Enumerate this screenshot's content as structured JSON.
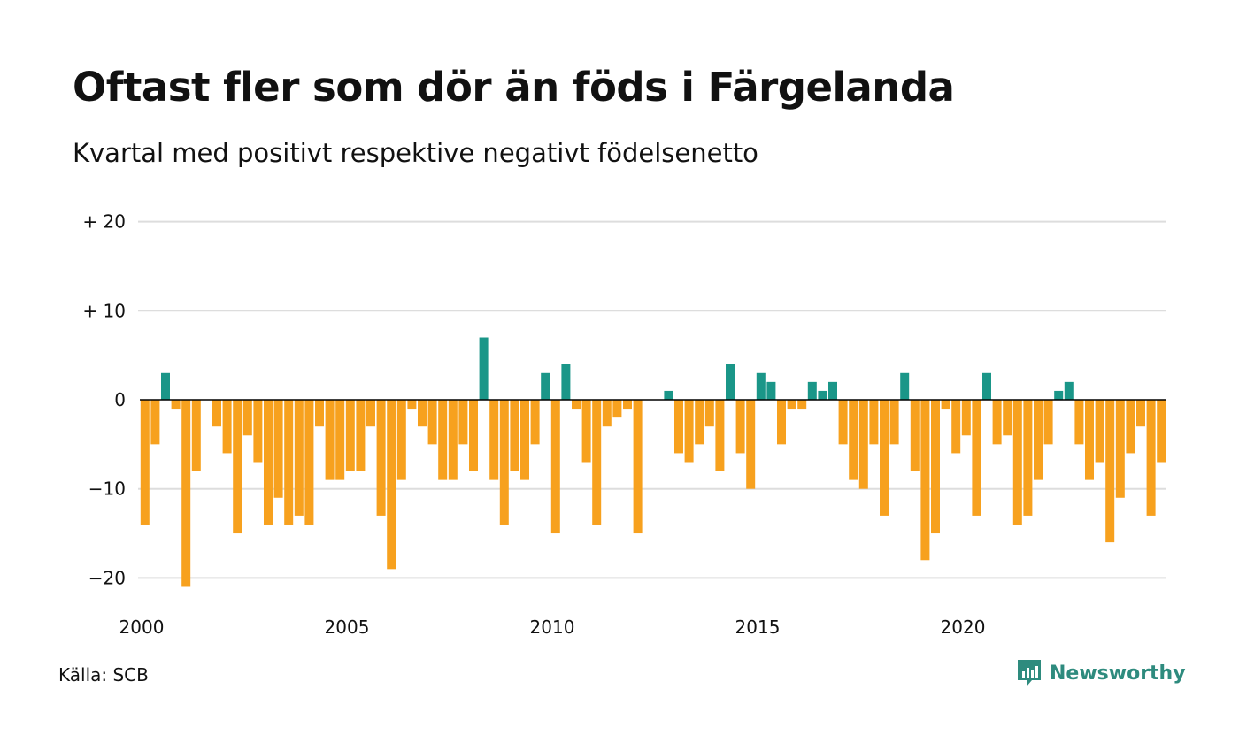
{
  "title": "Oftast fler som dör än föds i Färgelanda",
  "subtitle": "Kvartal med positivt respektive negativt födelsenetto",
  "source": "Källa: SCB",
  "brand": {
    "name": "Newsworthy",
    "icon": "newsworthy-logo-icon"
  },
  "colors": {
    "positive": "#1a9688",
    "negative": "#f7a11e",
    "grid": "#dddddd",
    "zero": "#000000"
  },
  "chart_data": {
    "type": "bar",
    "start_year": 2000,
    "quarters_per_year": 4,
    "xticks": [
      2000,
      2005,
      2010,
      2015,
      2020
    ],
    "ytick_values": [
      20,
      10,
      0,
      -10,
      -20
    ],
    "ytick_labels": [
      "+ 20",
      "+ 10",
      "0",
      "−10",
      "−20"
    ],
    "ylim": [
      -23,
      22
    ],
    "grid": true,
    "values": [
      -14,
      -5,
      3,
      -1,
      -21,
      -8,
      0,
      -3,
      -6,
      -15,
      -4,
      -7,
      -14,
      -11,
      -14,
      -13,
      -14,
      -3,
      -9,
      -9,
      -8,
      -8,
      -3,
      -13,
      -19,
      -9,
      -1,
      -3,
      -5,
      -9,
      -9,
      -5,
      -8,
      7,
      -9,
      -14,
      -8,
      -9,
      -5,
      3,
      -15,
      4,
      -1,
      -7,
      -14,
      -3,
      -2,
      -1,
      -15,
      0,
      0,
      1,
      -6,
      -7,
      -5,
      -3,
      -8,
      4,
      -6,
      -10,
      3,
      2,
      -5,
      -1,
      -1,
      2,
      1,
      2,
      -5,
      -9,
      -10,
      -5,
      -13,
      -5,
      3,
      -8,
      -18,
      -15,
      -1,
      -6,
      -4,
      -13,
      3,
      -5,
      -4,
      -14,
      -13,
      -9,
      -5,
      1,
      2,
      -5,
      -9,
      -7,
      -16,
      -11,
      -6,
      -3,
      -13,
      -7
    ]
  }
}
